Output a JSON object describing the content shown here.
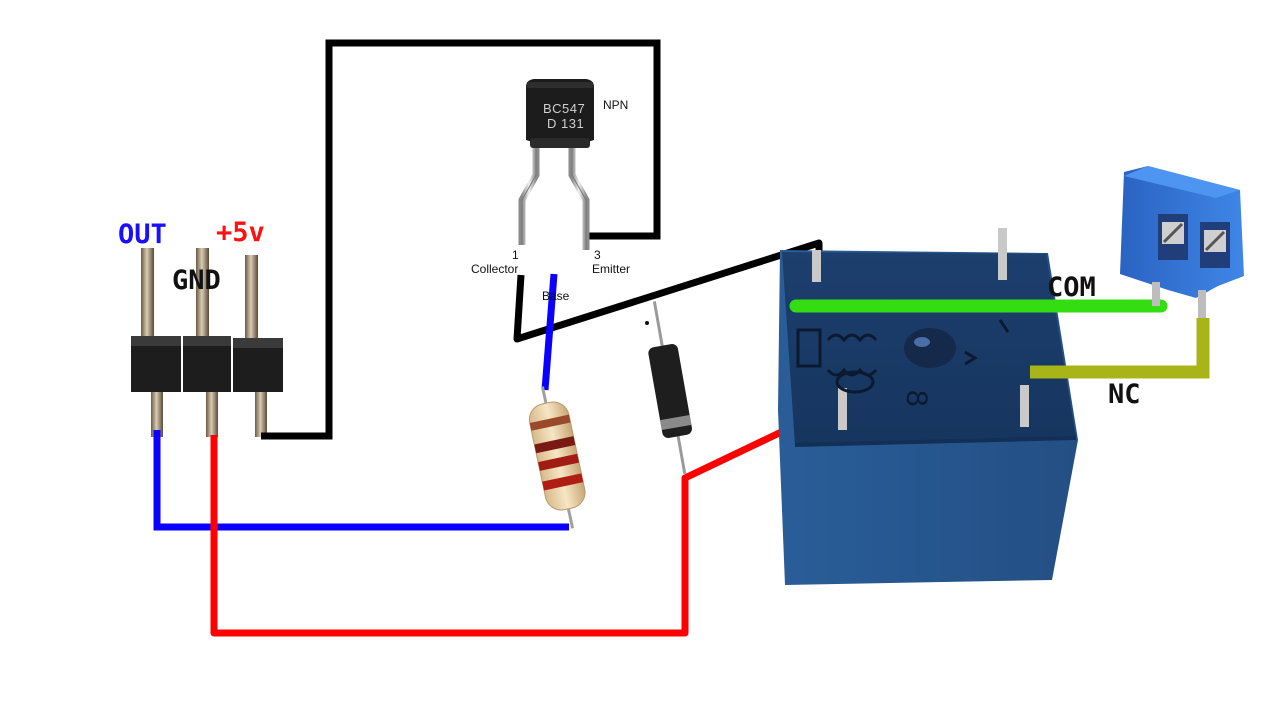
{
  "header": {
    "out_label": "OUT",
    "vcc_label": "+5v",
    "gnd_label": "GND"
  },
  "transistor": {
    "marking_line1": "BC547",
    "marking_line2": "D 131",
    "type_label": "NPN",
    "collector_number": "1",
    "collector_label": "Collector",
    "base_label": "Base",
    "emitter_number": "3",
    "emitter_label": "Emitter"
  },
  "relay": {
    "com_label": "COM",
    "nc_label": "NC",
    "marking": "8"
  },
  "colors": {
    "signal_wire": "#0b00ff",
    "power_wire": "#ff0000",
    "ground_wire": "#000000",
    "com_wire": "#33dd11",
    "nc_wire": "#a8b418",
    "out_label": "#1a10ff",
    "vcc_label": "#ff1111",
    "relay_body": "#24528a",
    "terminal_block": "#2f72d4"
  },
  "icons": {
    "header_pins": "header-pins-icon",
    "transistor": "transistor-icon",
    "resistor": "resistor-icon",
    "diode": "diode-icon",
    "relay": "relay-icon",
    "terminal_block": "terminal-block-icon"
  }
}
